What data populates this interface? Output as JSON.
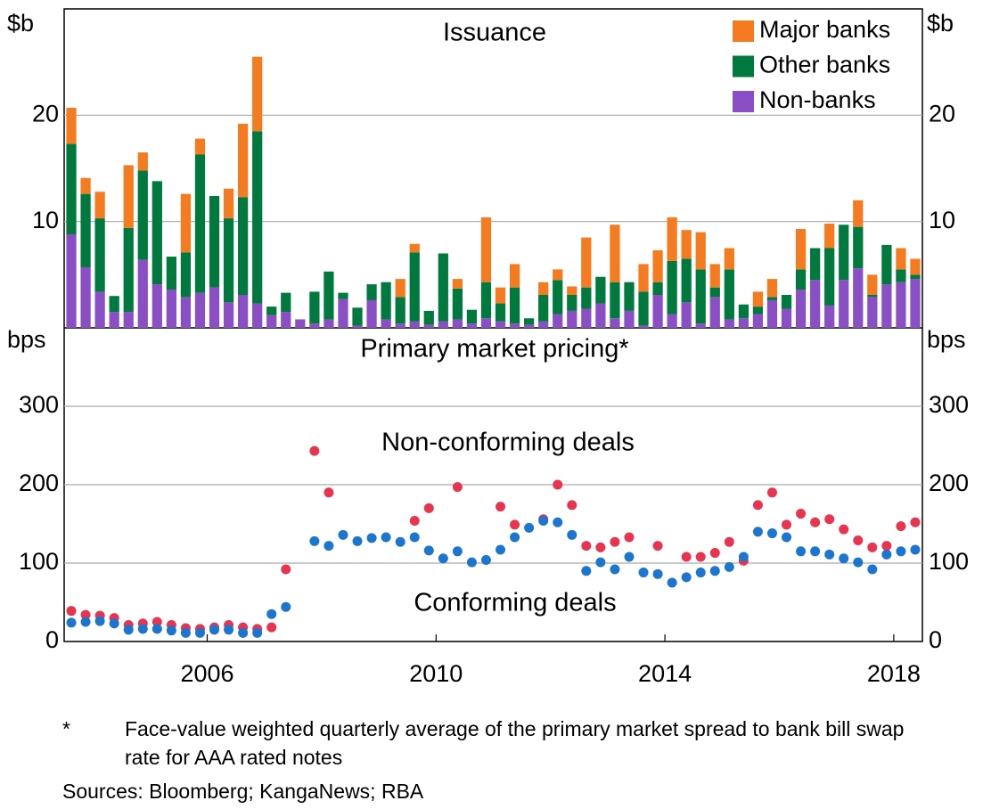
{
  "chart_data": [
    {
      "type": "bar",
      "title": "Issuance",
      "ylabel": "$b",
      "stacked": true,
      "legend": "upper right",
      "x": [
        2004.125,
        2004.375,
        2004.625,
        2004.875,
        2005.125,
        2005.375,
        2005.625,
        2005.875,
        2006.125,
        2006.375,
        2006.625,
        2006.875,
        2007.125,
        2007.375,
        2007.625,
        2007.875,
        2008.125,
        2008.375,
        2008.625,
        2008.875,
        2009.125,
        2009.375,
        2009.625,
        2009.875,
        2010.125,
        2010.375,
        2010.625,
        2010.875,
        2011.125,
        2011.375,
        2011.625,
        2011.875,
        2012.125,
        2012.375,
        2012.625,
        2012.875,
        2013.125,
        2013.375,
        2013.625,
        2013.875,
        2014.125,
        2014.375,
        2014.625,
        2014.875,
        2015.125,
        2015.375,
        2015.625,
        2015.875,
        2016.125,
        2016.375,
        2016.625,
        2016.875,
        2017.125,
        2017.375,
        2017.625,
        2017.875,
        2018.125,
        2018.375,
        2018.625,
        2018.875
      ],
      "xlim": [
        2004,
        2019
      ],
      "ylim": [
        0,
        30
      ],
      "yticks": [
        10,
        20
      ],
      "grid": true,
      "series": [
        {
          "name": "Major banks",
          "color": "#f47b20",
          "values": [
            3.4,
            1.5,
            2.5,
            0,
            5.9,
            1.7,
            0,
            0,
            5.5,
            1.5,
            0,
            2.8,
            6.9,
            7.0,
            0,
            0,
            0,
            0,
            0,
            0,
            0,
            0,
            0,
            1.7,
            0.8,
            0,
            0,
            0.9,
            0,
            6.1,
            1.5,
            2.2,
            0,
            1.2,
            1.0,
            0.8,
            4.7,
            0,
            5.4,
            0,
            2.6,
            3.0,
            4.1,
            2.7,
            3.5,
            2.2,
            2.0,
            0,
            1.4,
            1.7,
            0,
            3.8,
            0,
            2.3,
            0,
            2.5,
            1.9,
            0,
            2.0,
            1.5
          ]
        },
        {
          "name": "Other banks",
          "color": "#00793e",
          "values": [
            8.5,
            6.9,
            6.9,
            1.5,
            7.9,
            8.4,
            9.7,
            3.1,
            4.2,
            13,
            8.6,
            7.9,
            9.2,
            16.2,
            0.8,
            1.8,
            0,
            3.0,
            4.5,
            0.6,
            1.7,
            1.5,
            3.5,
            2.5,
            6.5,
            1.3,
            6.4,
            2.9,
            1.3,
            3.4,
            1.7,
            3.4,
            0.6,
            2.5,
            3.2,
            1.5,
            2.0,
            2.5,
            3.4,
            2.7,
            3.2,
            1.2,
            5.0,
            4.1,
            5.1,
            0.9,
            4.7,
            1.3,
            0.7,
            0.3,
            1.3,
            1.9,
            3.0,
            5.4,
            5.2,
            3.9,
            0.2,
            3.7,
            1.2,
            0.4
          ]
        },
        {
          "name": "Non-banks",
          "color": "#8a4fc5",
          "values": [
            8.8,
            5.7,
            3.4,
            1.5,
            1.5,
            6.4,
            4.1,
            3.6,
            2.9,
            3.3,
            3.8,
            2.4,
            3.1,
            2.3,
            1.2,
            1.5,
            0.8,
            0.4,
            0.8,
            2.7,
            0.2,
            2.6,
            0.8,
            0.4,
            0.6,
            0.3,
            0.6,
            0.8,
            0.4,
            0.9,
            0.6,
            0.4,
            0.3,
            0.6,
            1.3,
            1.6,
            1.8,
            2.3,
            0.9,
            1.6,
            0.2,
            3.1,
            1.3,
            2.4,
            0.4,
            2.9,
            0.8,
            0.9,
            1.3,
            2.6,
            1.8,
            3.6,
            4.5,
            2.1,
            4.5,
            5.6,
            2.9,
            4.1,
            4.3,
            4.6
          ]
        }
      ]
    },
    {
      "type": "scatter",
      "title": "Primary market pricing*",
      "ylabel": "bps",
      "x": [
        2004.125,
        2004.375,
        2004.625,
        2004.875,
        2005.125,
        2005.375,
        2005.625,
        2005.875,
        2006.125,
        2006.375,
        2006.625,
        2006.875,
        2007.125,
        2007.375,
        2007.625,
        2007.875,
        2008.125,
        2008.375,
        2008.625,
        2008.875,
        2009.125,
        2009.375,
        2009.625,
        2009.875,
        2010.125,
        2010.375,
        2010.625,
        2010.875,
        2011.125,
        2011.375,
        2011.625,
        2011.875,
        2012.125,
        2012.375,
        2012.625,
        2012.875,
        2013.125,
        2013.375,
        2013.625,
        2013.875,
        2014.125,
        2014.375,
        2014.625,
        2014.875,
        2015.125,
        2015.375,
        2015.625,
        2015.875,
        2016.125,
        2016.375,
        2016.625,
        2016.875,
        2017.125,
        2017.375,
        2017.625,
        2017.875,
        2018.125,
        2018.375,
        2018.625,
        2018.875
      ],
      "xlim": [
        2004,
        2019
      ],
      "ylim": [
        0,
        400
      ],
      "yticks": [
        0,
        100,
        200,
        300
      ],
      "grid": true,
      "xticks": [
        {
          "value": 2006.5,
          "label": "2006"
        },
        {
          "value": 2010.5,
          "label": "2010"
        },
        {
          "value": 2014.5,
          "label": "2014"
        },
        {
          "value": 2018.5,
          "label": "2018"
        }
      ],
      "series": [
        {
          "name": "Non-conforming deals",
          "color": "#e8344e",
          "values": [
            39,
            34,
            33,
            30,
            21,
            23,
            25,
            21,
            17,
            16,
            18,
            21,
            18,
            16,
            18,
            92,
            null,
            243,
            190,
            null,
            null,
            null,
            null,
            null,
            154,
            170,
            null,
            197,
            null,
            null,
            172,
            149,
            null,
            156,
            200,
            174,
            122,
            120,
            127,
            133,
            null,
            122,
            null,
            108,
            108,
            113,
            127,
            103,
            174,
            190,
            149,
            163,
            152,
            156,
            143,
            129,
            120,
            122,
            147,
            152
          ]
        },
        {
          "name": "Conforming deals",
          "color": "#1c75cf",
          "values": [
            24,
            25,
            26,
            23,
            15,
            16,
            16,
            14,
            11,
            11,
            15,
            15,
            11,
            11,
            35,
            44,
            null,
            128,
            122,
            136,
            128,
            132,
            133,
            127,
            133,
            116,
            106,
            115,
            101,
            104,
            117,
            133,
            145,
            154,
            152,
            136,
            90,
            101,
            92,
            108,
            88,
            86,
            75,
            82,
            88,
            90,
            95,
            108,
            140,
            138,
            133,
            115,
            115,
            111,
            106,
            101,
            92,
            111,
            115,
            117
          ]
        }
      ]
    }
  ],
  "footnote": {
    "marker": "*",
    "text": "Face-value weighted quarterly average of the primary market spread to bank bill swap rate for AAA rated notes"
  },
  "sources": "Sources:  Bloomberg; KangaNews; RBA"
}
